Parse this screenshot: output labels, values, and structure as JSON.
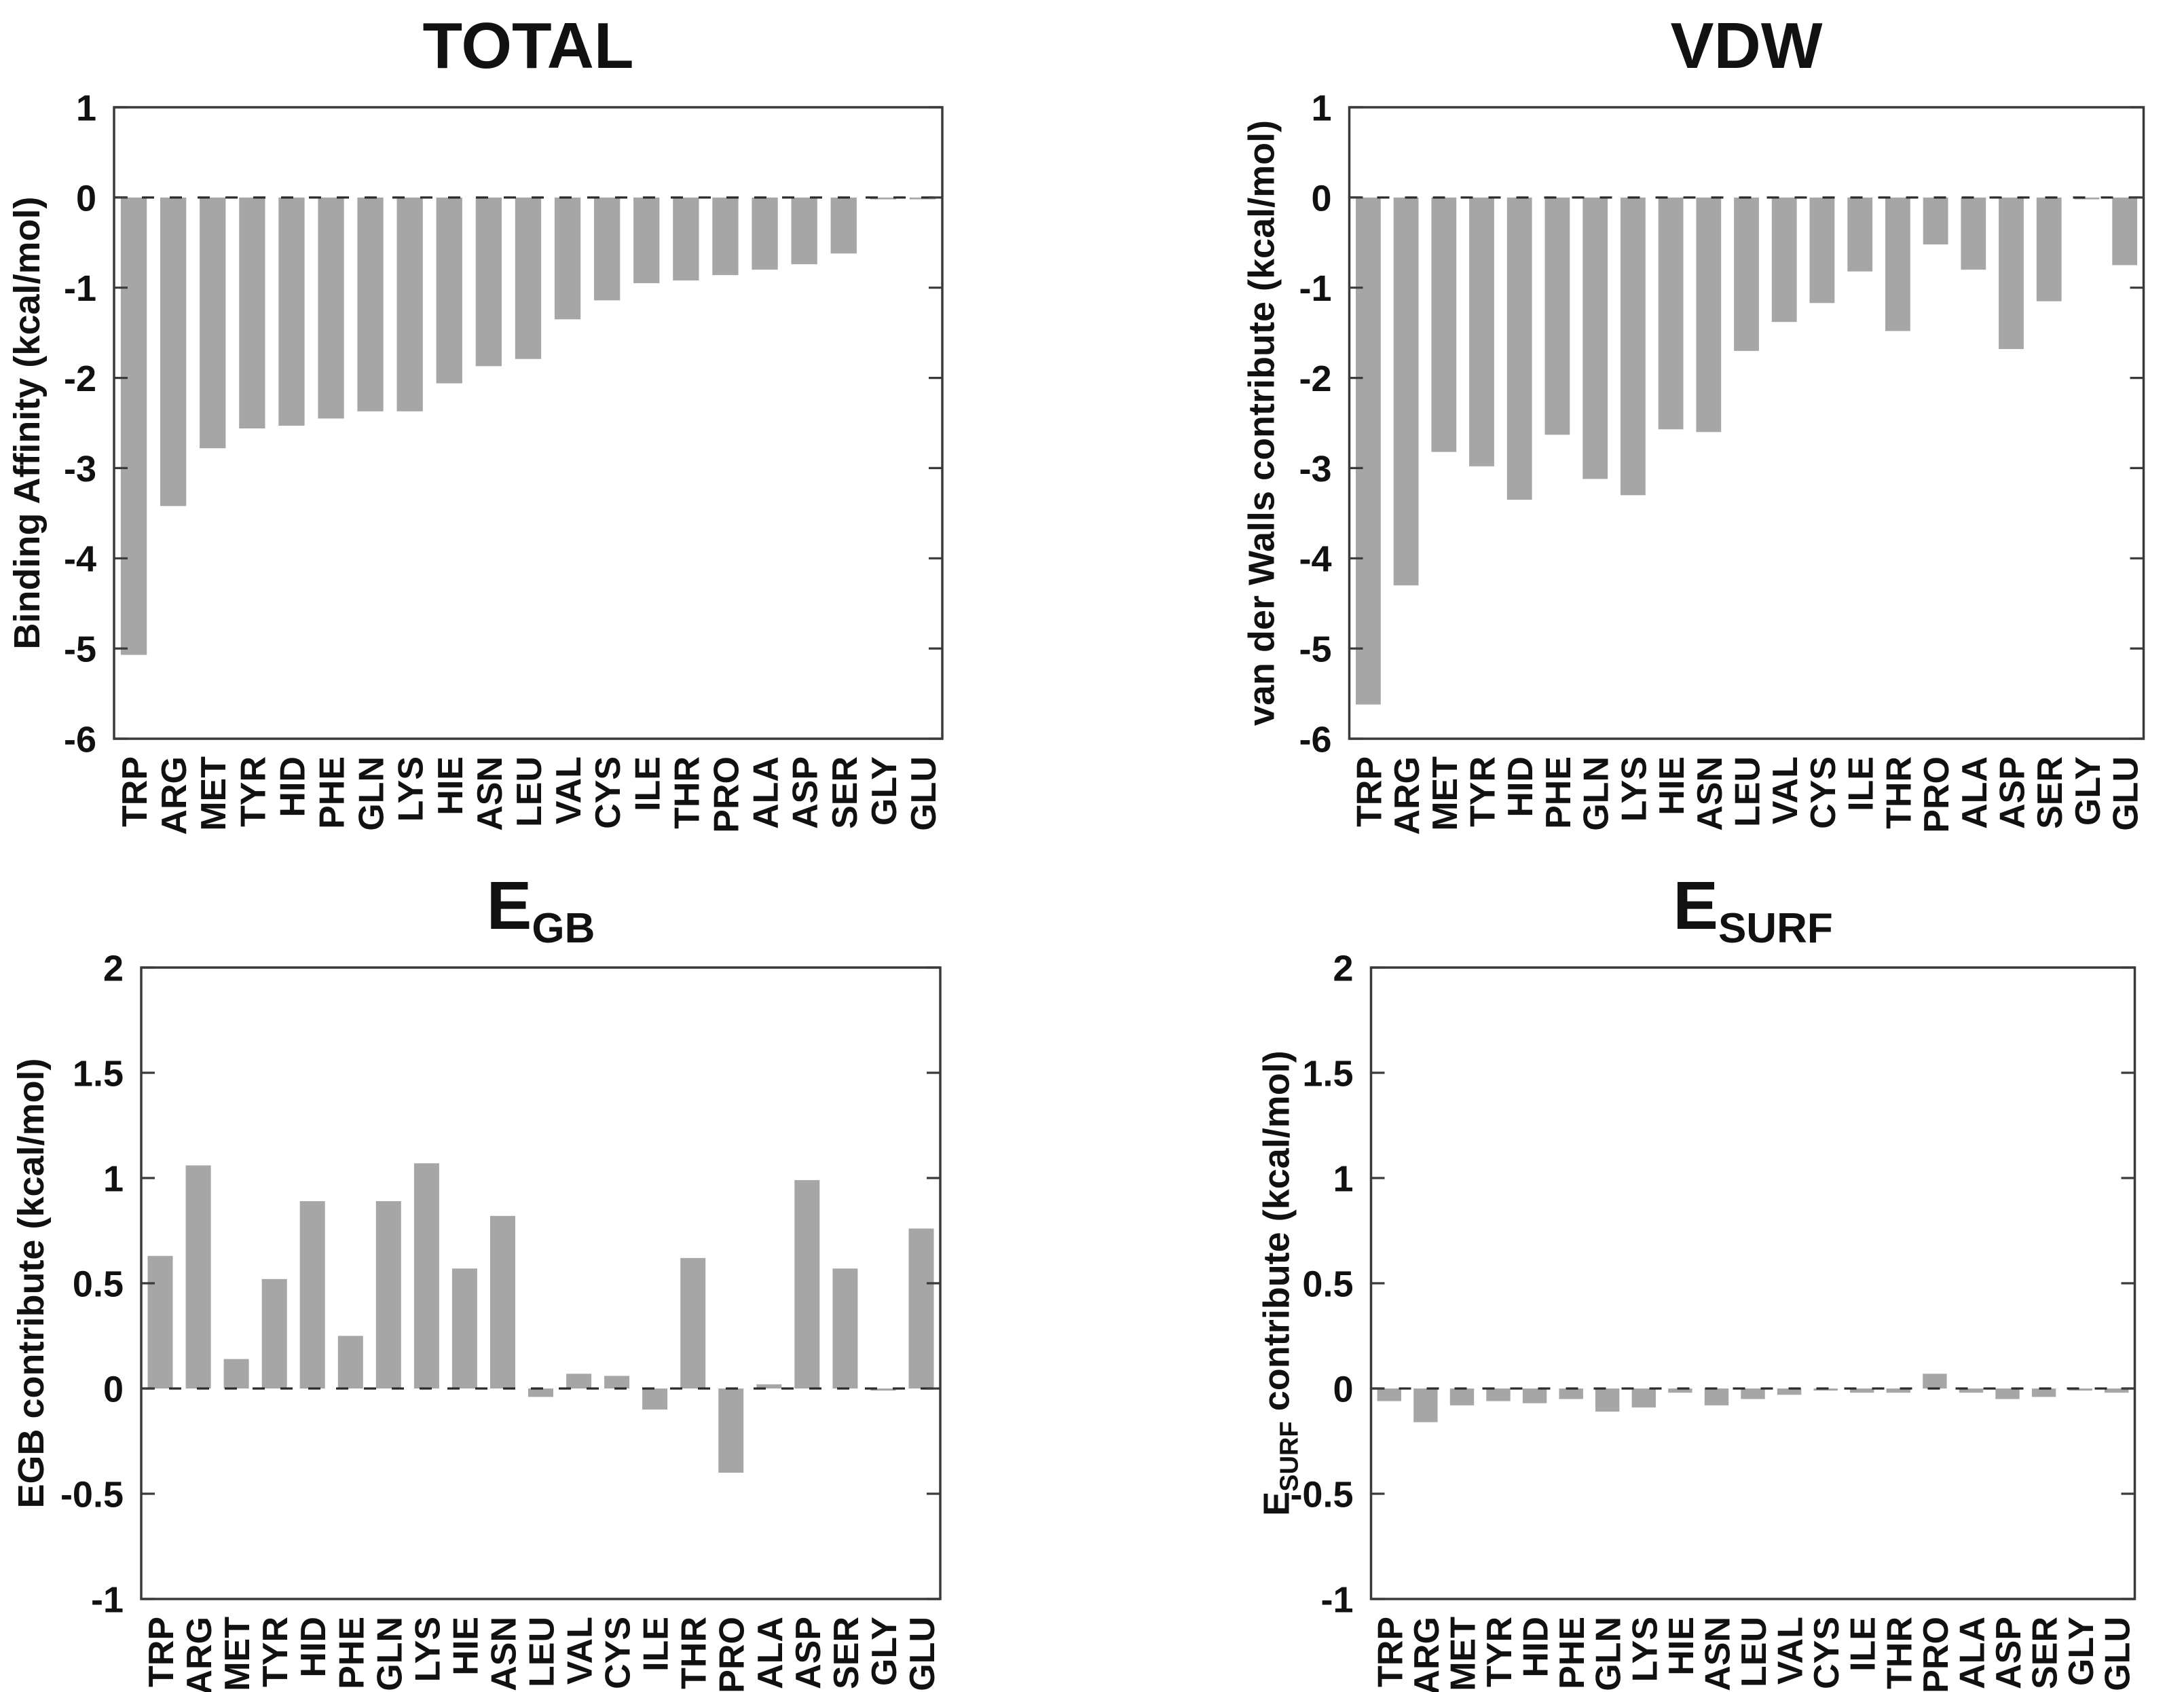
{
  "figure": {
    "background_color": "#ffffff",
    "bar_color": "#a6a6a6",
    "bar_edge_color": "#9a9a9a",
    "axis_color": "#3a3a3a",
    "zero_line_color": "#2b2b2b",
    "text_color": "#111111"
  },
  "chart_data": [
    {
      "id": "total",
      "type": "bar",
      "title_main": "TOTAL",
      "title_sub": "",
      "ylabel_parts": [
        {
          "text": "Binding Affinity (kcal/mol)",
          "sub": false
        }
      ],
      "ylim": [
        -6,
        1
      ],
      "yticks": [
        1,
        0,
        -1,
        -2,
        -3,
        -4,
        -5,
        -6
      ],
      "ytick_labels": [
        "1",
        "0",
        "-1",
        "-2",
        "-3",
        "-4",
        "-5",
        "-6"
      ],
      "grid": false,
      "legend": "none",
      "categories": [
        "TRP",
        "ARG",
        "MET",
        "TYR",
        "HID",
        "PHE",
        "GLN",
        "LYS",
        "HIE",
        "ASN",
        "LEU",
        "VAL",
        "CYS",
        "ILE",
        "THR",
        "PRO",
        "ALA",
        "ASP",
        "SER",
        "GLY",
        "GLU"
      ],
      "values": [
        -5.07,
        -3.42,
        -2.78,
        -2.56,
        -2.53,
        -2.45,
        -2.37,
        -2.37,
        -2.06,
        -1.87,
        -1.79,
        -1.35,
        -1.14,
        -0.95,
        -0.92,
        -0.86,
        -0.8,
        -0.74,
        -0.62,
        -0.02,
        -0.02
      ]
    },
    {
      "id": "vdw",
      "type": "bar",
      "title_main": "VDW",
      "title_sub": "",
      "ylabel_parts": [
        {
          "text": "van der Walls contribute (kcal/mol)",
          "sub": false
        }
      ],
      "ylim": [
        -6,
        1
      ],
      "yticks": [
        1,
        0,
        -1,
        -2,
        -3,
        -4,
        -5,
        -6
      ],
      "ytick_labels": [
        "1",
        "0",
        "-1",
        "-2",
        "-3",
        "-4",
        "-5",
        "-6"
      ],
      "grid": false,
      "legend": "none",
      "categories": [
        "TRP",
        "ARG",
        "MET",
        "TYR",
        "HID",
        "PHE",
        "GLN",
        "LYS",
        "HIE",
        "ASN",
        "LEU",
        "VAL",
        "CYS",
        "ILE",
        "THR",
        "PRO",
        "ALA",
        "ASP",
        "SER",
        "GLY",
        "GLU"
      ],
      "values": [
        -5.62,
        -4.3,
        -2.82,
        -2.98,
        -3.35,
        -2.63,
        -3.12,
        -3.3,
        -2.57,
        -2.6,
        -1.7,
        -1.38,
        -1.17,
        -0.82,
        -1.48,
        -0.52,
        -0.8,
        -1.68,
        -1.15,
        -0.02,
        -0.75
      ]
    },
    {
      "id": "egb",
      "type": "bar",
      "title_main": "E",
      "title_sub": "GB",
      "ylabel_parts": [
        {
          "text": "EGB contribute (kcal/mol)",
          "sub": false
        }
      ],
      "ylim": [
        -1,
        2
      ],
      "yticks": [
        2,
        1.5,
        1,
        0.5,
        0,
        -0.5,
        -1
      ],
      "ytick_labels": [
        "2",
        "1.5",
        "1",
        "0.5",
        "0",
        "-0.5",
        "-1"
      ],
      "grid": false,
      "legend": "none",
      "categories": [
        "TRP",
        "ARG",
        "MET",
        "TYR",
        "HID",
        "PHE",
        "GLN",
        "LYS",
        "HIE",
        "ASN",
        "LEU",
        "VAL",
        "CYS",
        "ILE",
        "THR",
        "PRO",
        "ALA",
        "ASP",
        "SER",
        "GLY",
        "GLU"
      ],
      "values": [
        0.63,
        1.06,
        0.14,
        0.52,
        0.89,
        0.25,
        0.89,
        1.07,
        0.57,
        0.82,
        -0.04,
        0.07,
        0.06,
        -0.1,
        0.62,
        -0.4,
        0.02,
        0.99,
        0.57,
        -0.01,
        0.76
      ]
    },
    {
      "id": "esurf",
      "type": "bar",
      "title_main": "E",
      "title_sub": "SURF",
      "ylabel_parts": [
        {
          "text": "E",
          "sub": false
        },
        {
          "text": "SURF",
          "sub": true
        },
        {
          "text": " contribute (kcal/mol)",
          "sub": false
        }
      ],
      "ylim": [
        -1,
        2
      ],
      "yticks": [
        2,
        1.5,
        1,
        0.5,
        0,
        -0.5,
        -1
      ],
      "ytick_labels": [
        "2",
        "1.5",
        "1",
        "0.5",
        "0",
        "-0.5",
        "-1"
      ],
      "grid": false,
      "legend": "none",
      "categories": [
        "TRP",
        "ARG",
        "MET",
        "TYR",
        "HID",
        "PHE",
        "GLN",
        "LYS",
        "HIE",
        "ASN",
        "LEU",
        "VAL",
        "CYS",
        "ILE",
        "THR",
        "PRO",
        "ALA",
        "ASP",
        "SER",
        "GLY",
        "GLU"
      ],
      "values": [
        -0.06,
        -0.16,
        -0.08,
        -0.06,
        -0.07,
        -0.05,
        -0.11,
        -0.09,
        -0.02,
        -0.08,
        -0.05,
        -0.03,
        -0.01,
        -0.02,
        -0.02,
        0.07,
        -0.02,
        -0.05,
        -0.04,
        -0.01,
        -0.02
      ]
    }
  ]
}
